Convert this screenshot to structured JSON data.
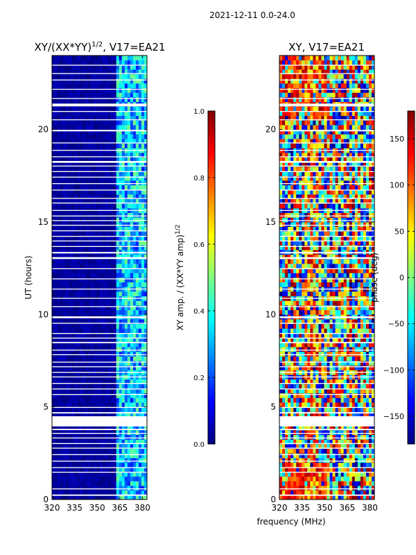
{
  "suptitle": "2021-12-11 0.0-24.0",
  "colors": {
    "background": "#000080",
    "gap": "#ffffff",
    "jet": [
      "#00007f",
      "#0000ff",
      "#007fff",
      "#00ffff",
      "#7fff7f",
      "#ffff00",
      "#ff7f00",
      "#ff0000",
      "#7f0000"
    ]
  },
  "chart_data": [
    {
      "type": "heatmap",
      "panel": "amplitude",
      "title_main": "XY/(XX*YY)",
      "title_sup": "1/2",
      "title_tail": ", V17=EA21",
      "xlabel": "",
      "ylabel": "UT (hours)",
      "xlim": [
        320,
        383
      ],
      "ylim": [
        0,
        24
      ],
      "xticks": [
        "320",
        "335",
        "350",
        "365",
        "380"
      ],
      "xtick_values": [
        320,
        335,
        350,
        365,
        380
      ],
      "yticks": [
        "0",
        "5",
        "10",
        "15",
        "20"
      ],
      "ytick_values": [
        0,
        5,
        10,
        15,
        20
      ],
      "value_range": [
        0.0,
        1.0
      ],
      "bright_band_mhz": [
        361,
        383
      ],
      "colorbar": {
        "label_main": "XY amp. / (XX*YY amp)",
        "label_sup": "1/2",
        "range": [
          0.0,
          1.0
        ],
        "ticks": [
          "0.0",
          "0.2",
          "0.4",
          "0.6",
          "0.8",
          "1.0"
        ],
        "tick_values": [
          0.0,
          0.2,
          0.4,
          0.6,
          0.8,
          1.0
        ]
      }
    },
    {
      "type": "heatmap",
      "panel": "phase",
      "title_main": "XY, V17=EA21",
      "xlabel": "frequency (MHz)",
      "ylabel": "",
      "xlim": [
        320,
        383
      ],
      "ylim": [
        0,
        24
      ],
      "xticks": [
        "320",
        "335",
        "350",
        "365",
        "380"
      ],
      "xtick_values": [
        320,
        335,
        350,
        365,
        380
      ],
      "yticks": [
        "0",
        "5",
        "10",
        "15",
        "20"
      ],
      "ytick_values": [
        0,
        5,
        10,
        15,
        20
      ],
      "value_range": [
        -180,
        180
      ],
      "colorbar": {
        "label_main": "phase (deg)",
        "range": [
          -180,
          180
        ],
        "ticks": [
          "−150",
          "−100",
          "−50",
          "0",
          "50",
          "100",
          "150"
        ],
        "tick_values": [
          -150,
          -100,
          -50,
          0,
          50,
          100,
          150
        ]
      }
    }
  ],
  "data_gaps_ut_hours": [
    [
      0.2,
      0.27
    ],
    [
      0.55,
      0.6
    ],
    [
      1.45,
      1.5
    ],
    [
      1.7,
      1.75
    ],
    [
      2.05,
      2.1
    ],
    [
      2.4,
      2.45
    ],
    [
      2.75,
      2.8
    ],
    [
      3.0,
      3.05
    ],
    [
      3.3,
      3.35
    ],
    [
      3.55,
      3.6
    ],
    [
      3.75,
      3.82
    ],
    [
      3.95,
      4.5
    ],
    [
      4.65,
      4.72
    ],
    [
      4.95,
      5.0
    ],
    [
      5.65,
      5.7
    ],
    [
      5.95,
      6.0
    ],
    [
      6.25,
      6.3
    ],
    [
      6.6,
      6.65
    ],
    [
      6.85,
      6.9
    ],
    [
      7.15,
      7.2
    ],
    [
      7.4,
      7.45
    ],
    [
      7.8,
      7.85
    ],
    [
      8.05,
      8.1
    ],
    [
      8.45,
      8.52
    ],
    [
      8.7,
      8.75
    ],
    [
      8.95,
      9.0
    ],
    [
      9.5,
      9.55
    ],
    [
      9.8,
      9.9
    ],
    [
      10.4,
      10.45
    ],
    [
      10.85,
      10.9
    ],
    [
      11.35,
      11.4
    ],
    [
      11.9,
      11.95
    ],
    [
      12.45,
      12.5
    ],
    [
      13.0,
      13.1
    ],
    [
      13.3,
      13.38
    ],
    [
      13.65,
      13.7
    ],
    [
      13.95,
      14.0
    ],
    [
      14.2,
      14.25
    ],
    [
      14.5,
      14.55
    ],
    [
      14.8,
      14.85
    ],
    [
      15.05,
      15.1
    ],
    [
      15.3,
      15.35
    ],
    [
      15.6,
      15.65
    ],
    [
      16.0,
      16.05
    ],
    [
      16.25,
      16.3
    ],
    [
      16.7,
      16.75
    ],
    [
      17.05,
      17.1
    ],
    [
      17.4,
      17.45
    ],
    [
      17.7,
      17.75
    ],
    [
      18.0,
      18.05
    ],
    [
      18.2,
      18.3
    ],
    [
      18.5,
      18.55
    ],
    [
      18.85,
      18.9
    ],
    [
      19.25,
      19.3
    ],
    [
      19.9,
      19.98
    ],
    [
      20.5,
      20.55
    ],
    [
      20.95,
      21.0
    ],
    [
      21.25,
      21.4
    ],
    [
      21.65,
      21.7
    ],
    [
      22.15,
      22.2
    ],
    [
      22.65,
      22.7
    ],
    [
      23.0,
      23.05
    ],
    [
      23.45,
      23.5
    ]
  ]
}
